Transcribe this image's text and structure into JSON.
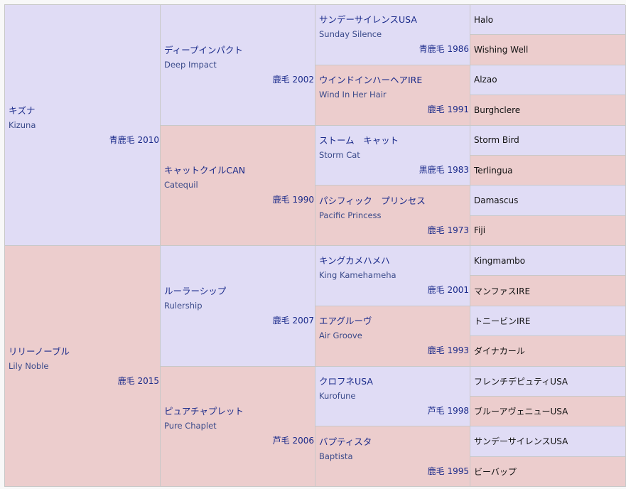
{
  "gen1": [
    {
      "jp": "キズナ",
      "en": "Kizuna",
      "coat": "青鹿毛 2010"
    },
    {
      "jp": "リリーノーブル",
      "en": "Lily Noble",
      "coat": "鹿毛 2015"
    }
  ],
  "gen2": [
    {
      "jp": "ディープインパクト",
      "en": "Deep Impact",
      "coat": "鹿毛 2002"
    },
    {
      "jp": "キャットクイルCAN",
      "en": "Catequil",
      "coat": "鹿毛 1990"
    },
    {
      "jp": "ルーラーシップ",
      "en": "Rulership",
      "coat": "鹿毛 2007"
    },
    {
      "jp": "ピュアチャプレット",
      "en": "Pure Chaplet",
      "coat": "芦毛 2006"
    }
  ],
  "gen3": [
    {
      "jp": "サンデーサイレンスUSA",
      "en": "Sunday Silence",
      "coat": "青鹿毛 1986"
    },
    {
      "jp": "ウインドインハーヘアIRE",
      "en": "Wind In Her Hair",
      "coat": "鹿毛 1991"
    },
    {
      "jp": "ストーム　キャット",
      "en": "Storm Cat",
      "coat": "黒鹿毛 1983"
    },
    {
      "jp": "パシフィック　プリンセス",
      "en": "Pacific Princess",
      "coat": "鹿毛 1973"
    },
    {
      "jp": "キングカメハメハ",
      "en": "King Kamehameha",
      "coat": "鹿毛 2001"
    },
    {
      "jp": "エアグルーヴ",
      "en": "Air Groove",
      "coat": "鹿毛 1993"
    },
    {
      "jp": "クロフネUSA",
      "en": "Kurofune",
      "coat": "芦毛 1998"
    },
    {
      "jp": "バプティスタ",
      "en": "Baptista",
      "coat": "鹿毛 1995"
    }
  ],
  "gen4": [
    "Halo",
    "Wishing Well",
    "Alzao",
    "Burghclere",
    "Storm Bird",
    "Terlingua",
    "Damascus",
    "Fiji",
    "Kingmambo",
    "マンファスIRE",
    "トニービンIRE",
    "ダイナカール",
    "フレンチデピュティUSA",
    "ブルーアヴェニューUSA",
    "サンデーサイレンスUSA",
    "ビーバップ"
  ],
  "colors": {
    "sire_bg": "#e0dcf5",
    "dam_bg": "#eccdcd",
    "link": "#1a2a8a"
  }
}
